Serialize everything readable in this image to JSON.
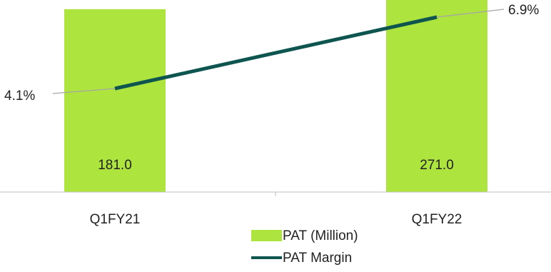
{
  "chart_data": {
    "type": "bar",
    "categories": [
      "Q1FY21",
      "Q1FY22"
    ],
    "series": [
      {
        "name": "PAT (Million)",
        "kind": "bar",
        "values": [
          181.0,
          271.0
        ],
        "labels": [
          "181.0",
          "271.0"
        ],
        "color": "#aee43e"
      },
      {
        "name": "PAT Margin",
        "kind": "line",
        "unit": "%",
        "values": [
          4.1,
          6.9
        ],
        "labels": [
          "4.1%",
          "6.9%"
        ],
        "color": "#0e5550"
      }
    ],
    "title": "",
    "xlabel": "",
    "ylabel": "",
    "grid": false,
    "legend": "bottom",
    "axis_color": "#bfbfbf",
    "leader_color": "#a6a6a6"
  }
}
